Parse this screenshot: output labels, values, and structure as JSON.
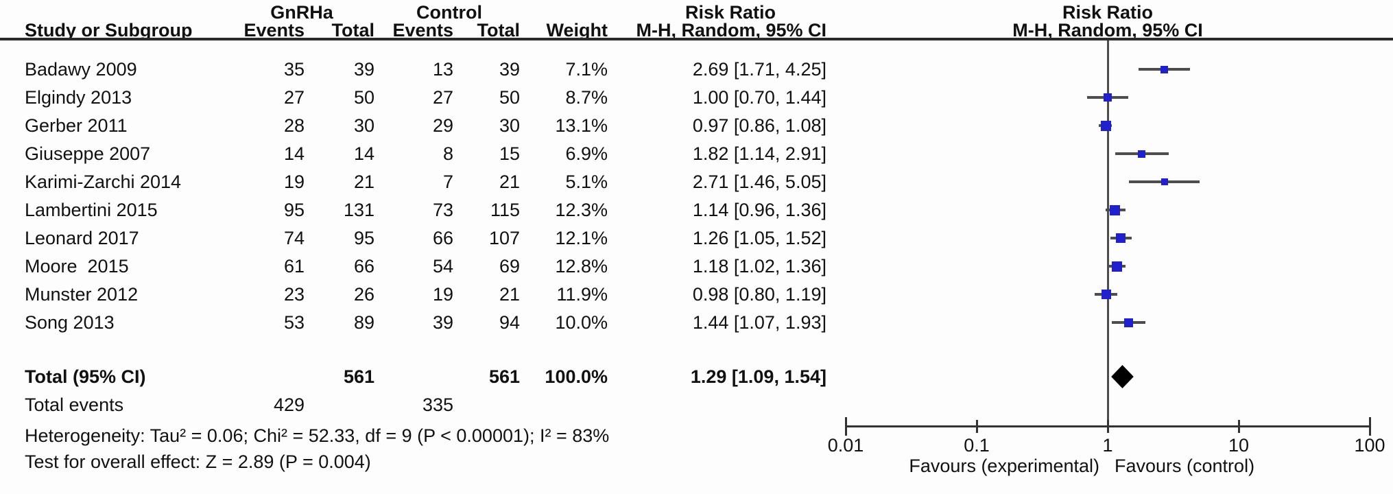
{
  "header": {
    "group1": "GnRHa",
    "group2": "Control",
    "risk_ratio_left": "Risk Ratio",
    "risk_ratio_right": "Risk Ratio",
    "study": "Study or Subgroup",
    "events1": "Events",
    "total1": "Total",
    "events2": "Events",
    "total2": "Total",
    "weight": "Weight",
    "mh_left": "M-H, Random, 95% CI",
    "mh_right": "M-H, Random, 95% CI"
  },
  "chart_data": {
    "type": "forest",
    "effect_measure": "Risk Ratio",
    "model": "M-H, Random, 95% CI",
    "x_scale": "log10",
    "x_range": [
      0.01,
      100
    ],
    "x_ticks": [
      "0.01",
      "0.1",
      "1",
      "10",
      "100"
    ],
    "x_tick_values": [
      0.01,
      0.1,
      1,
      10,
      100
    ],
    "favours_left": "Favours (experimental)",
    "favours_right": "Favours (control)",
    "studies": [
      {
        "name": "Badawy 2009",
        "events1": "35",
        "total1": "39",
        "events2": "13",
        "total2": "39",
        "weight": "7.1%",
        "weight_pct": 7.1,
        "rr": 2.69,
        "ci_low": 1.71,
        "ci_high": 4.25,
        "label": "2.69 [1.71, 4.25]"
      },
      {
        "name": "Elgindy 2013",
        "events1": "27",
        "total1": "50",
        "events2": "27",
        "total2": "50",
        "weight": "8.7%",
        "weight_pct": 8.7,
        "rr": 1.0,
        "ci_low": 0.7,
        "ci_high": 1.44,
        "label": "1.00 [0.70, 1.44]"
      },
      {
        "name": "Gerber 2011",
        "events1": "28",
        "total1": "30",
        "events2": "29",
        "total2": "30",
        "weight": "13.1%",
        "weight_pct": 13.1,
        "rr": 0.97,
        "ci_low": 0.86,
        "ci_high": 1.08,
        "label": "0.97 [0.86, 1.08]"
      },
      {
        "name": "Giuseppe 2007",
        "events1": "14",
        "total1": "14",
        "events2": "8",
        "total2": "15",
        "weight": "6.9%",
        "weight_pct": 6.9,
        "rr": 1.82,
        "ci_low": 1.14,
        "ci_high": 2.91,
        "label": "1.82 [1.14, 2.91]"
      },
      {
        "name": "Karimi-Zarchi 2014",
        "events1": "19",
        "total1": "21",
        "events2": "7",
        "total2": "21",
        "weight": "5.1%",
        "weight_pct": 5.1,
        "rr": 2.71,
        "ci_low": 1.46,
        "ci_high": 5.05,
        "label": "2.71 [1.46, 5.05]"
      },
      {
        "name": "Lambertini 2015",
        "events1": "95",
        "total1": "131",
        "events2": "73",
        "total2": "115",
        "weight": "12.3%",
        "weight_pct": 12.3,
        "rr": 1.14,
        "ci_low": 0.96,
        "ci_high": 1.36,
        "label": "1.14 [0.96, 1.36]"
      },
      {
        "name": "Leonard 2017",
        "events1": "74",
        "total1": "95",
        "events2": "66",
        "total2": "107",
        "weight": "12.1%",
        "weight_pct": 12.1,
        "rr": 1.26,
        "ci_low": 1.05,
        "ci_high": 1.52,
        "label": "1.26 [1.05, 1.52]"
      },
      {
        "name": "Moore  2015",
        "events1": "61",
        "total1": "66",
        "events2": "54",
        "total2": "69",
        "weight": "12.8%",
        "weight_pct": 12.8,
        "rr": 1.18,
        "ci_low": 1.02,
        "ci_high": 1.36,
        "label": "1.18 [1.02, 1.36]"
      },
      {
        "name": "Munster 2012",
        "events1": "23",
        "total1": "26",
        "events2": "19",
        "total2": "21",
        "weight": "11.9%",
        "weight_pct": 11.9,
        "rr": 0.98,
        "ci_low": 0.8,
        "ci_high": 1.19,
        "label": "0.98 [0.80, 1.19]"
      },
      {
        "name": "Song 2013",
        "events1": "53",
        "total1": "89",
        "events2": "39",
        "total2": "94",
        "weight": "10.0%",
        "weight_pct": 10.0,
        "rr": 1.44,
        "ci_low": 1.07,
        "ci_high": 1.93,
        "label": "1.44 [1.07, 1.93]"
      }
    ],
    "total": {
      "label": "Total (95% CI)",
      "total1": "561",
      "total2": "561",
      "weight": "100.0%",
      "rr": 1.29,
      "ci_low": 1.09,
      "ci_high": 1.54,
      "rr_label": "1.29 [1.09, 1.54]"
    },
    "total_events": {
      "label": "Total events",
      "group1": "429",
      "group2": "335"
    },
    "footnotes": {
      "heterogeneity": "Heterogeneity: Tau² = 0.06; Chi² = 52.33, df = 9 (P < 0.00001); I² = 83%",
      "overall_effect": "Test for overall effect: Z = 2.89 (P = 0.004)"
    },
    "colors": {
      "square": "#2121cc",
      "ci_line": "#4d4d4d",
      "diamond": "#000000",
      "axis": "#333333",
      "text": "#111111"
    }
  }
}
